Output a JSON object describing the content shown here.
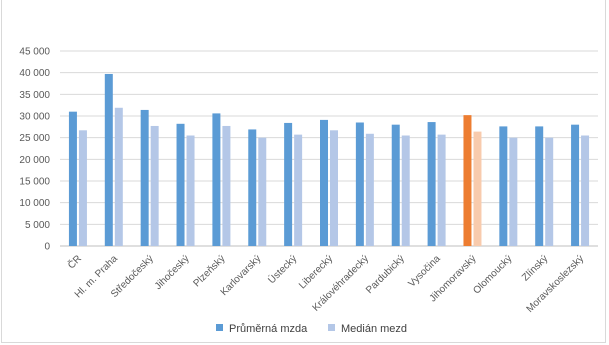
{
  "chart_data": {
    "type": "bar",
    "title": "",
    "xlabel": "",
    "ylabel": "",
    "ylim": [
      0,
      45000
    ],
    "y_ticks": [
      0,
      5000,
      10000,
      15000,
      20000,
      25000,
      30000,
      35000,
      40000,
      45000
    ],
    "y_tick_labels": [
      "0",
      "5 000",
      "10 000",
      "15 000",
      "20 000",
      "25 000",
      "30 000",
      "35 000",
      "40 000",
      "45 000"
    ],
    "grid": true,
    "legend": "bottom",
    "categories": [
      "ČR",
      "Hl. m. Praha",
      "Středočeský",
      "Jihočeský",
      "Plzeňský",
      "Karlovarský",
      "Ústecký",
      "Liberecký",
      "Královéhradecký",
      "Pardubický",
      "Vysočina",
      "Jihomoravský",
      "Olomoucký",
      "Zlínský",
      "Moravskoslezský"
    ],
    "series": [
      {
        "name": "Průměrná mzda",
        "color": "#5b9bd5",
        "values": [
          31000,
          39700,
          31400,
          28200,
          30600,
          26900,
          28400,
          29100,
          28500,
          28000,
          28600,
          30200,
          27600,
          27600,
          28000
        ]
      },
      {
        "name": "Medián mezd",
        "color": "#b4c7e7",
        "values": [
          26700,
          31900,
          27700,
          25500,
          27700,
          25000,
          25700,
          26700,
          25900,
          25500,
          25700,
          26400,
          25000,
          25000,
          25500
        ]
      }
    ],
    "highlight": {
      "category": "Jihomoravský",
      "colors": [
        "#ed7d31",
        "#f8cbad"
      ]
    }
  }
}
